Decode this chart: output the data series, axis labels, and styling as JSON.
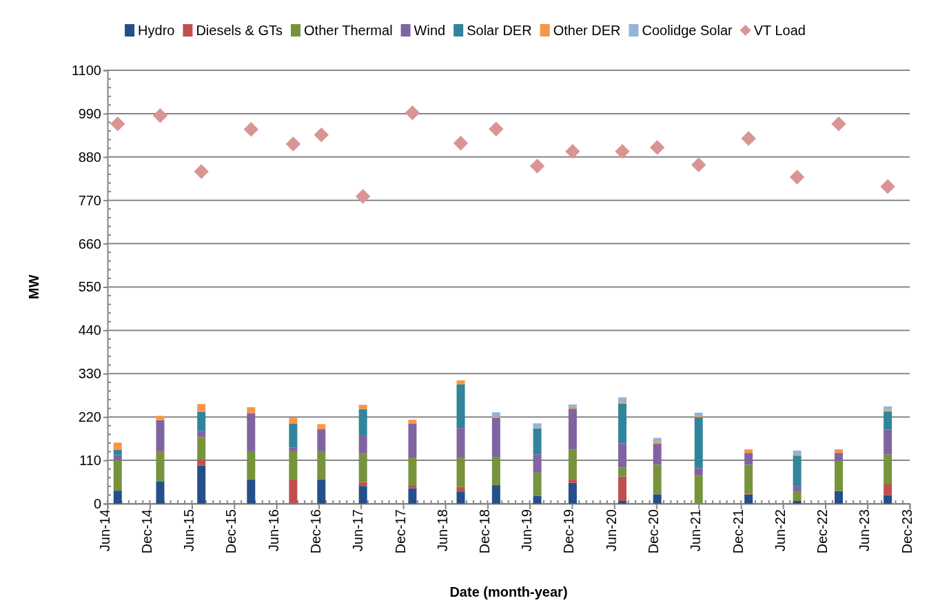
{
  "chart_data": {
    "type": "bar",
    "stacked": true,
    "xlabel": "Date (month-year)",
    "ylabel": "MW",
    "legend": "top",
    "grid": "y",
    "x": [
      "2014-07-15",
      "2015-01-15",
      "2015-07-12",
      "2016-02-12",
      "2016-08-12",
      "2016-12-12",
      "2017-06-10",
      "2018-01-10",
      "2018-08-07",
      "2019-01-07",
      "2019-07-04",
      "2019-12-04",
      "2020-07-06",
      "2020-12-04",
      "2021-06-01",
      "2022-01-03",
      "2022-08-01",
      "2023-01-28",
      "2023-08-28"
    ],
    "xlim": [
      "2014-06-01",
      "2023-12-01"
    ],
    "xticks": [
      {
        "value": "2014-06-01",
        "label": "Jun-14"
      },
      {
        "value": "2014-12-01",
        "label": "Dec-14"
      },
      {
        "value": "2015-06-01",
        "label": "Jun-15"
      },
      {
        "value": "2015-12-01",
        "label": "Dec-15"
      },
      {
        "value": "2016-06-01",
        "label": "Jun-16"
      },
      {
        "value": "2016-12-01",
        "label": "Dec-16"
      },
      {
        "value": "2017-06-01",
        "label": "Jun-17"
      },
      {
        "value": "2017-12-01",
        "label": "Dec-17"
      },
      {
        "value": "2018-06-01",
        "label": "Jun-18"
      },
      {
        "value": "2018-12-01",
        "label": "Dec-18"
      },
      {
        "value": "2019-06-01",
        "label": "Jun-19"
      },
      {
        "value": "2019-12-01",
        "label": "Dec-19"
      },
      {
        "value": "2020-06-01",
        "label": "Jun-20"
      },
      {
        "value": "2020-12-01",
        "label": "Dec-20"
      },
      {
        "value": "2021-06-01",
        "label": "Jun-21"
      },
      {
        "value": "2021-12-01",
        "label": "Dec-21"
      },
      {
        "value": "2022-06-01",
        "label": "Jun-22"
      },
      {
        "value": "2022-12-01",
        "label": "Dec-22"
      },
      {
        "value": "2023-06-01",
        "label": "Jun-23"
      },
      {
        "value": "2023-12-01",
        "label": "Dec-23"
      }
    ],
    "ylim": [
      0,
      1100
    ],
    "yticks": [
      0,
      110,
      220,
      330,
      440,
      550,
      660,
      770,
      880,
      990,
      1100
    ],
    "series": [
      {
        "name": "Hydro",
        "color": "#254f8a",
        "values": [
          33,
          57,
          97,
          61,
          0,
          61,
          45,
          39,
          31,
          47,
          20,
          53,
          7,
          24,
          0,
          23,
          7,
          32,
          22
        ]
      },
      {
        "name": "Diesels & GTs",
        "color": "#c0504d",
        "values": [
          0,
          0,
          15,
          0,
          61,
          0,
          10,
          8,
          12,
          0,
          0,
          8,
          62,
          0,
          0,
          2,
          0,
          0,
          27
        ]
      },
      {
        "name": "Other Thermal",
        "color": "#77933c",
        "values": [
          77,
          76,
          57,
          72,
          72,
          72,
          72,
          70,
          74,
          72,
          59,
          76,
          23,
          75,
          71,
          74,
          23,
          77,
          76
        ]
      },
      {
        "name": "Wind",
        "color": "#8064a2",
        "values": [
          13,
          79,
          16,
          97,
          10,
          56,
          46,
          86,
          75,
          99,
          46,
          104,
          61,
          53,
          19,
          30,
          14,
          20,
          63
        ]
      },
      {
        "name": "Solar DER",
        "color": "#31849b",
        "values": [
          14,
          0,
          48,
          0,
          60,
          0,
          67,
          0,
          111,
          0,
          66,
          0,
          101,
          0,
          129,
          0,
          78,
          0,
          46
        ]
      },
      {
        "name": "Other DER",
        "color": "#f79646",
        "values": [
          18,
          11,
          20,
          15,
          15,
          13,
          11,
          10,
          10,
          3,
          0,
          4,
          3,
          5,
          3,
          9,
          2,
          9,
          3
        ]
      },
      {
        "name": "Coolidge Solar",
        "color": "#95b3d7",
        "values": [
          0,
          0,
          0,
          0,
          0,
          0,
          0,
          0,
          0,
          11,
          13,
          7,
          13,
          10,
          9,
          0,
          11,
          0,
          10
        ]
      },
      {
        "name": "VT Load",
        "type": "scatter",
        "marker": "diamond",
        "color": "#d99594",
        "values": [
          964,
          985,
          843,
          950,
          913,
          936,
          780,
          992,
          915,
          951,
          857,
          894,
          894,
          904,
          860,
          927,
          829,
          964,
          805
        ]
      }
    ]
  }
}
